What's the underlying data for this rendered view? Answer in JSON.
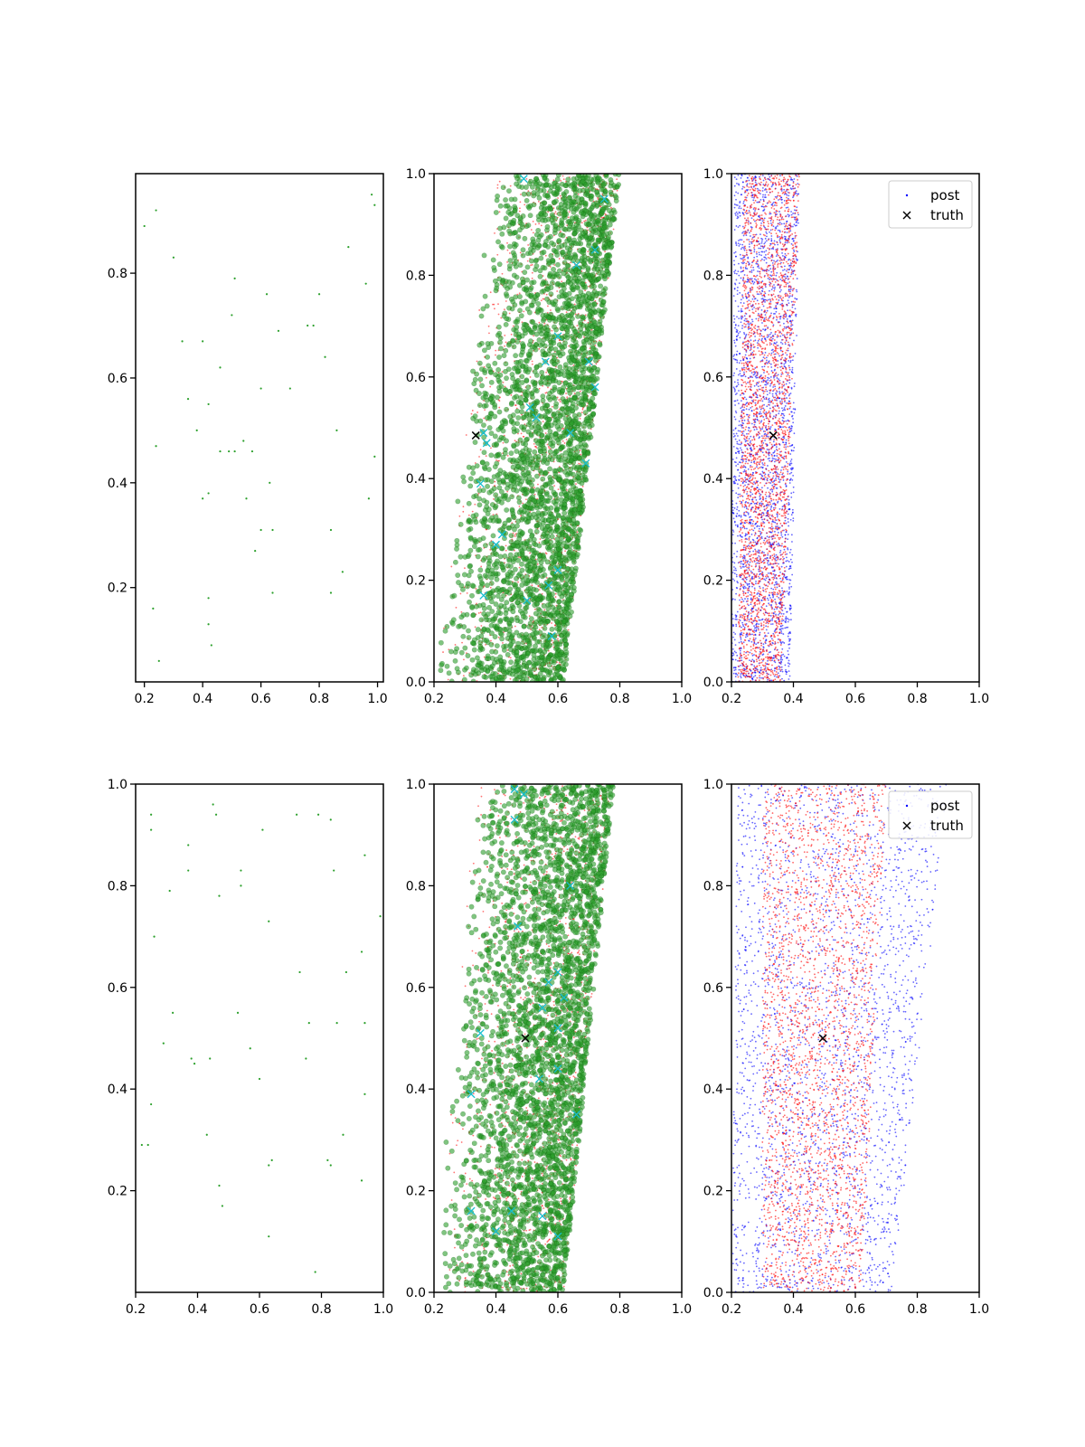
{
  "chart_data": [
    {
      "id": "r1c1",
      "type": "scatter",
      "xlim": [
        0.17,
        1.02
      ],
      "ylim": [
        0.02,
        0.99
      ],
      "xticks": [
        "0.2",
        "0.4",
        "0.6",
        "0.8",
        "1.0"
      ],
      "yticks": [
        "0.2",
        "0.4",
        "0.6",
        "0.8"
      ],
      "ytick_values": [
        0.2,
        0.4,
        0.6,
        0.8
      ],
      "series": [
        {
          "color": "#2ca02c",
          "points": [
            [
              0.2,
              0.89
            ],
            [
              0.24,
              0.92
            ],
            [
              0.3,
              0.83
            ],
            [
              0.98,
              0.95
            ],
            [
              0.99,
              0.93
            ],
            [
              0.51,
              0.79
            ],
            [
              0.9,
              0.85
            ],
            [
              0.96,
              0.78
            ],
            [
              0.62,
              0.76
            ],
            [
              0.8,
              0.76
            ],
            [
              0.5,
              0.72
            ],
            [
              0.66,
              0.69
            ],
            [
              0.76,
              0.7
            ],
            [
              0.78,
              0.7
            ],
            [
              0.33,
              0.67
            ],
            [
              0.4,
              0.67
            ],
            [
              0.82,
              0.64
            ],
            [
              0.46,
              0.62
            ],
            [
              0.6,
              0.58
            ],
            [
              0.7,
              0.58
            ],
            [
              0.35,
              0.56
            ],
            [
              0.42,
              0.55
            ],
            [
              0.38,
              0.5
            ],
            [
              0.86,
              0.5
            ],
            [
              0.54,
              0.48
            ],
            [
              0.24,
              0.47
            ],
            [
              0.46,
              0.46
            ],
            [
              0.49,
              0.46
            ],
            [
              0.51,
              0.46
            ],
            [
              0.57,
              0.46
            ],
            [
              0.99,
              0.45
            ],
            [
              0.63,
              0.4
            ],
            [
              0.42,
              0.38
            ],
            [
              0.4,
              0.37
            ],
            [
              0.55,
              0.37
            ],
            [
              0.97,
              0.37
            ],
            [
              0.6,
              0.31
            ],
            [
              0.64,
              0.31
            ],
            [
              0.84,
              0.31
            ],
            [
              0.58,
              0.27
            ],
            [
              0.88,
              0.23
            ],
            [
              0.84,
              0.19
            ],
            [
              0.64,
              0.19
            ],
            [
              0.42,
              0.18
            ],
            [
              0.23,
              0.16
            ],
            [
              0.42,
              0.13
            ],
            [
              0.43,
              0.09
            ],
            [
              0.25,
              0.06
            ]
          ]
        }
      ]
    },
    {
      "id": "r1c2",
      "type": "scatter",
      "xlim": [
        0.2,
        1.0
      ],
      "ylim": [
        0.0,
        1.0
      ],
      "xticks": [
        "0.2",
        "0.4",
        "0.6",
        "0.8",
        "1.0"
      ],
      "yticks": [
        "0.0",
        "0.2",
        "0.4",
        "0.6",
        "0.8",
        "1.0"
      ],
      "ytick_values": [
        0.0,
        0.2,
        0.4,
        0.6,
        0.8,
        1.0
      ],
      "cloud": {
        "lo": [
          0.2,
          0.39
        ],
        "hi": [
          0.62,
          0.8
        ],
        "bias": 0.55
      },
      "truth": [
        0.335,
        0.485
      ],
      "cyan_x": [
        [
          0.36,
          0.49
        ],
        [
          0.37,
          0.47
        ],
        [
          0.35,
          0.39
        ],
        [
          0.51,
          0.54
        ],
        [
          0.53,
          0.52
        ],
        [
          0.42,
          0.29
        ],
        [
          0.4,
          0.27
        ],
        [
          0.6,
          0.22
        ],
        [
          0.57,
          0.19
        ],
        [
          0.36,
          0.17
        ],
        [
          0.5,
          0.16
        ],
        [
          0.58,
          0.09
        ],
        [
          0.49,
          0.99
        ],
        [
          0.75,
          0.95
        ],
        [
          0.66,
          0.82
        ],
        [
          0.72,
          0.85
        ],
        [
          0.56,
          0.63
        ],
        [
          0.7,
          0.63
        ],
        [
          0.69,
          0.43
        ],
        [
          0.72,
          0.58
        ],
        [
          0.6,
          0.68
        ],
        [
          0.64,
          0.49
        ]
      ]
    },
    {
      "id": "r1c3",
      "type": "scatter",
      "xlim": [
        0.2,
        1.0
      ],
      "ylim": [
        0.0,
        1.0
      ],
      "xticks": [
        "0.2",
        "0.4",
        "0.6",
        "0.8",
        "1.0"
      ],
      "yticks": [
        "0.0",
        "0.2",
        "0.4",
        "0.6",
        "0.8",
        "1.0"
      ],
      "ytick_values": [
        0.0,
        0.2,
        0.4,
        0.6,
        0.8,
        1.0
      ],
      "blue_band": {
        "lo": [
          0.2,
          0.21
        ],
        "hi": [
          0.39,
          0.42
        ]
      },
      "red_band": {
        "lo": [
          0.22,
          0.24
        ],
        "hi": [
          0.36,
          0.42
        ]
      },
      "truth": [
        0.335,
        0.485
      ],
      "legend": {
        "placement": "top-right",
        "entries": [
          {
            "label": "post",
            "marker": "dot"
          },
          {
            "label": "truth",
            "marker": "x"
          }
        ]
      }
    },
    {
      "id": "r2c1",
      "type": "scatter",
      "xlim": [
        0.2,
        1.0
      ],
      "ylim": [
        0.0,
        1.0
      ],
      "xticks": [
        "0.2",
        "0.4",
        "0.6",
        "0.8",
        "1.0"
      ],
      "yticks": [
        "0.2",
        "0.4",
        "0.6",
        "0.8",
        "1.0"
      ],
      "ytick_values": [
        0.2,
        0.4,
        0.6,
        0.8,
        1.0
      ],
      "series": [
        {
          "color": "#2ca02c",
          "points": [
            [
              0.25,
              0.94
            ],
            [
              0.45,
              0.96
            ],
            [
              0.46,
              0.94
            ],
            [
              0.72,
              0.94
            ],
            [
              0.79,
              0.94
            ],
            [
              0.83,
              0.93
            ],
            [
              0.25,
              0.91
            ],
            [
              0.61,
              0.91
            ],
            [
              0.37,
              0.88
            ],
            [
              0.94,
              0.86
            ],
            [
              0.37,
              0.83
            ],
            [
              0.54,
              0.83
            ],
            [
              0.84,
              0.83
            ],
            [
              0.54,
              0.8
            ],
            [
              0.31,
              0.79
            ],
            [
              0.47,
              0.78
            ],
            [
              0.99,
              0.74
            ],
            [
              0.63,
              0.73
            ],
            [
              0.26,
              0.7
            ],
            [
              0.93,
              0.67
            ],
            [
              0.73,
              0.63
            ],
            [
              0.88,
              0.63
            ],
            [
              0.32,
              0.55
            ],
            [
              0.53,
              0.55
            ],
            [
              0.76,
              0.53
            ],
            [
              0.85,
              0.53
            ],
            [
              0.94,
              0.53
            ],
            [
              0.29,
              0.49
            ],
            [
              0.57,
              0.48
            ],
            [
              0.38,
              0.46
            ],
            [
              0.44,
              0.46
            ],
            [
              0.75,
              0.46
            ],
            [
              0.39,
              0.45
            ],
            [
              0.6,
              0.42
            ],
            [
              0.94,
              0.39
            ],
            [
              0.25,
              0.37
            ],
            [
              0.87,
              0.31
            ],
            [
              0.43,
              0.31
            ],
            [
              0.64,
              0.26
            ],
            [
              0.63,
              0.25
            ],
            [
              0.22,
              0.29
            ],
            [
              0.24,
              0.29
            ],
            [
              0.82,
              0.26
            ],
            [
              0.83,
              0.25
            ],
            [
              0.93,
              0.22
            ],
            [
              0.47,
              0.21
            ],
            [
              0.48,
              0.17
            ],
            [
              0.63,
              0.11
            ],
            [
              0.78,
              0.04
            ]
          ]
        }
      ]
    },
    {
      "id": "r2c2",
      "type": "scatter",
      "xlim": [
        0.2,
        1.0
      ],
      "ylim": [
        0.0,
        1.0
      ],
      "xticks": [
        "0.2",
        "0.4",
        "0.6",
        "0.8",
        "1.0"
      ],
      "yticks": [
        "0.0",
        "0.2",
        "0.4",
        "0.6",
        "0.8",
        "1.0"
      ],
      "ytick_values": [
        0.0,
        0.2,
        0.4,
        0.6,
        0.8,
        1.0
      ],
      "cloud": {
        "lo": [
          0.2,
          0.33
        ],
        "hi": [
          0.62,
          0.78
        ],
        "bias": 0.55
      },
      "truth": [
        0.495,
        0.5
      ],
      "cyan_x": [
        [
          0.35,
          0.51
        ],
        [
          0.32,
          0.39
        ],
        [
          0.32,
          0.16
        ],
        [
          0.4,
          0.12
        ],
        [
          0.45,
          0.16
        ],
        [
          0.55,
          0.15
        ],
        [
          0.6,
          0.11
        ],
        [
          0.46,
          0.99
        ],
        [
          0.49,
          0.98
        ],
        [
          0.46,
          0.93
        ],
        [
          0.47,
          0.72
        ],
        [
          0.57,
          0.61
        ],
        [
          0.6,
          0.63
        ],
        [
          0.62,
          0.58
        ],
        [
          0.6,
          0.52
        ],
        [
          0.66,
          0.35
        ],
        [
          0.6,
          0.44
        ],
        [
          0.54,
          0.42
        ],
        [
          0.64,
          0.8
        ],
        [
          0.55,
          0.56
        ]
      ]
    },
    {
      "id": "r2c3",
      "type": "scatter",
      "xlim": [
        0.2,
        1.0
      ],
      "ylim": [
        0.0,
        1.0
      ],
      "xticks": [
        "0.2",
        "0.4",
        "0.6",
        "0.8",
        "1.0"
      ],
      "yticks": [
        "0.0",
        "0.2",
        "0.4",
        "0.6",
        "0.8",
        "1.0"
      ],
      "ytick_values": [
        0.0,
        0.2,
        0.4,
        0.6,
        0.8,
        1.0
      ],
      "blue_band": {
        "lo": [
          0.2,
          0.22
        ],
        "hi": [
          0.72,
          0.9
        ]
      },
      "red_band": {
        "lo": [
          0.3,
          0.3
        ],
        "hi": [
          0.62,
          0.7
        ]
      },
      "truth": [
        0.495,
        0.5
      ],
      "legend": {
        "placement": "top-right",
        "entries": [
          {
            "label": "post",
            "marker": "dot"
          },
          {
            "label": "truth",
            "marker": "x"
          }
        ]
      }
    }
  ],
  "colors": {
    "green": "#2ca02c",
    "dark_green": "#1a7a1a",
    "red": "#ff0000",
    "blue": "#0000ff",
    "cyan": "#17becf",
    "black": "#000000"
  }
}
